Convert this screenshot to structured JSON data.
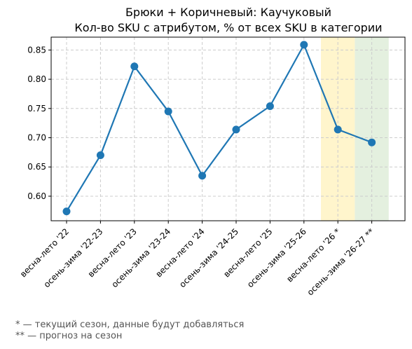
{
  "chart_data": {
    "type": "line",
    "title": "Брюки + Коричневый: Каучуковый",
    "subtitle": "Кол-во SKU с атрибутом, % от всех SKU в категории",
    "xlabel": "",
    "ylabel": "",
    "categories": [
      "весна-лето '22",
      "осень-зима '22-23",
      "весна-лето '23",
      "осень-зима '23-24",
      "весна-лето '24",
      "осень-зима '24-25",
      "весна-лето '25",
      "осень-зима '25-26",
      "весна-лето '26 *",
      "осень-зима '26-27 **"
    ],
    "series": [
      {
        "values": [
          0.574,
          0.67,
          0.822,
          0.745,
          0.635,
          0.714,
          0.754,
          0.859,
          0.714,
          0.692
        ]
      }
    ],
    "ylim": [
      0.558,
      0.872
    ],
    "yticks": [
      "0.60",
      "0.65",
      "0.70",
      "0.75",
      "0.80",
      "0.85"
    ],
    "grid": true,
    "line_color": "#1f77b4",
    "highlights": [
      {
        "category_index": 8,
        "color": "#fff5cc",
        "meaning": "current season"
      },
      {
        "category_index": 9,
        "color": "#e4f0df",
        "meaning": "forecast"
      }
    ]
  },
  "footnotes": {
    "current": "* — текущий сезон, данные будут добавляться",
    "forecast": "** — прогноз на сезон"
  }
}
